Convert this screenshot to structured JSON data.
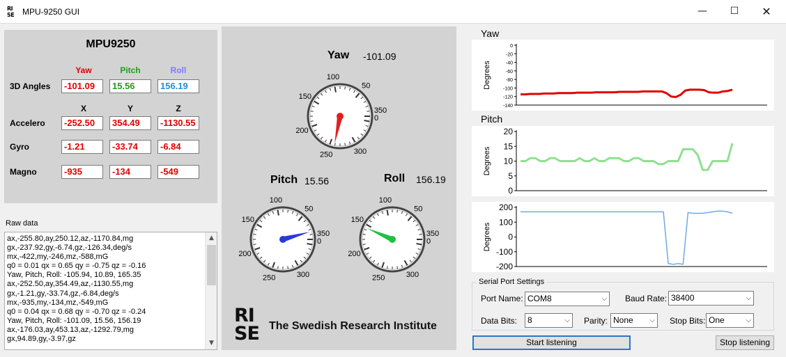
{
  "window": {
    "title": "MPU-9250 GUI",
    "icon_lines": [
      "RI",
      "SE"
    ],
    "minimize": "—",
    "maximize": "☐",
    "close": "✕"
  },
  "left": {
    "title": "MPU9250",
    "angle_headers": [
      "Yaw",
      "Pitch",
      "Roll"
    ],
    "angle_header_colors": [
      "#e00000",
      "#1a9e1a",
      "#7b7bff"
    ],
    "axis_headers": [
      "X",
      "Y",
      "Z"
    ],
    "rows": [
      {
        "label": "3D Angles",
        "values": [
          "-101.09",
          "15.56",
          "156.19"
        ],
        "colors": [
          "#e00000",
          "#1a9e1a",
          "#1f8fd8"
        ]
      },
      {
        "label": "Accelero",
        "values": [
          "-252.50",
          "354.49",
          "-1130.55"
        ],
        "colors": [
          "#e00000",
          "#e00000",
          "#e00000"
        ]
      },
      {
        "label": "Gyro",
        "values": [
          "-1.21",
          "-33.74",
          "-6.84"
        ],
        "colors": [
          "#e00000",
          "#e00000",
          "#e00000"
        ]
      },
      {
        "label": "Magno",
        "values": [
          "-935",
          "-134",
          "-549"
        ],
        "colors": [
          "#e00000",
          "#e00000",
          "#e00000"
        ]
      }
    ]
  },
  "raw": {
    "label": "Raw data",
    "lines": [
      "ax,-255.80,ay,250.12,az,-1170.84,mg",
      "gx,-237.92,gy,-6.74,gz,-126.34,deg/s",
      "mx,-422,my,-246,mz,-588,mG",
      "q0 = 0.01 qx = 0.65 qy = -0.75 qz = -0.16",
      "Yaw, Pitch, Roll: -105.94, 10.89, 165.35",
      "ax,-252.50,ay,354.49,az,-1130.55,mg",
      "gx,-1.21,gy,-33.74,gz,-6.84,deg/s",
      "mx,-935,my,-134,mz,-549,mG",
      "q0 = 0.04 qx = 0.68 qy = -0.70 qz = -0.24",
      "Yaw, Pitch, Roll: -101.09, 15.56, 156.19",
      "ax,-176.03,ay,453.13,az,-1292.79,mg",
      "gx,94.89,gy,-3.97,gz"
    ],
    "scroll_up": "▲",
    "scroll_down": "▼"
  },
  "gauges": {
    "yaw": {
      "title": "Yaw",
      "value": "-101.09",
      "needle_deg": 258.9,
      "needle_color": "#e02020"
    },
    "pitch": {
      "title": "Pitch",
      "value": "15.56",
      "needle_deg": 15.56,
      "needle_color": "#2a3ad8"
    },
    "roll": {
      "title": "Roll",
      "value": "156.19",
      "needle_deg": 156.19,
      "needle_color": "#20c040"
    },
    "tick_labels": [
      "0",
      "50",
      "100",
      "150",
      "200",
      "250",
      "300",
      "350"
    ]
  },
  "logo": {
    "lines": [
      "RI",
      "SE"
    ],
    "text": "The Swedish Research Institute"
  },
  "chart_data": [
    {
      "type": "line",
      "title": "Yaw",
      "ylabel": "Degrees",
      "ylim": [
        -140,
        0
      ],
      "yticks": [
        0,
        -20,
        -40,
        -60,
        -80,
        -100,
        -120,
        -140
      ],
      "color": "#e00000",
      "values": [
        -115,
        -115,
        -114,
        -114,
        -114,
        -113,
        -113,
        -113,
        -112,
        -112,
        -112,
        -112,
        -111,
        -111,
        -111,
        -111,
        -110,
        -110,
        -110,
        -110,
        -110,
        -109,
        -109,
        -109,
        -109,
        -109,
        -108,
        -108,
        -108,
        -108,
        -108,
        -112,
        -120,
        -121,
        -116,
        -106,
        -104,
        -104,
        -104,
        -105,
        -110,
        -111,
        -111,
        -108,
        -107,
        -104
      ]
    },
    {
      "type": "line",
      "title": "Pitch",
      "ylabel": "Degrees",
      "ylim": [
        0,
        20
      ],
      "yticks": [
        20,
        15,
        10,
        5,
        0
      ],
      "color": "#90e090",
      "values": [
        10,
        10,
        11,
        11,
        10,
        10,
        11,
        11,
        10,
        10,
        10,
        10,
        11,
        10,
        10,
        11,
        10,
        10,
        11,
        11,
        11,
        10,
        10,
        11,
        11,
        10,
        10,
        10,
        9,
        9,
        10,
        10,
        10,
        14,
        14,
        14,
        12,
        7,
        7,
        10,
        10,
        10,
        10,
        16
      ]
    },
    {
      "type": "line",
      "title": "",
      "ylabel": "Degrees",
      "ylim": [
        -200,
        200
      ],
      "yticks": [
        200,
        100,
        0,
        -100,
        -200
      ],
      "color": "#70a8e0",
      "values": [
        170,
        170,
        170,
        170,
        170,
        170,
        170,
        170,
        170,
        170,
        170,
        170,
        170,
        170,
        170,
        170,
        170,
        170,
        170,
        170,
        170,
        170,
        170,
        170,
        170,
        170,
        170,
        170,
        170,
        170,
        -180,
        -185,
        -180,
        -185,
        165,
        160,
        160,
        160,
        165,
        170,
        175,
        175,
        170,
        160
      ]
    }
  ],
  "serial": {
    "group_title": "Serial Port Settings",
    "port_label": "Port Name:",
    "port_value": "COM8",
    "baud_label": "Baud Rate:",
    "baud_value": "38400",
    "databits_label": "Data Bits:",
    "databits_value": "8",
    "parity_label": "Parity:",
    "parity_value": "None",
    "stopbits_label": "Stop Bits:",
    "stopbits_value": "One",
    "dropdown_arrow": "⌵",
    "start_label": "Start listening",
    "stop_label": "Stop listening"
  }
}
